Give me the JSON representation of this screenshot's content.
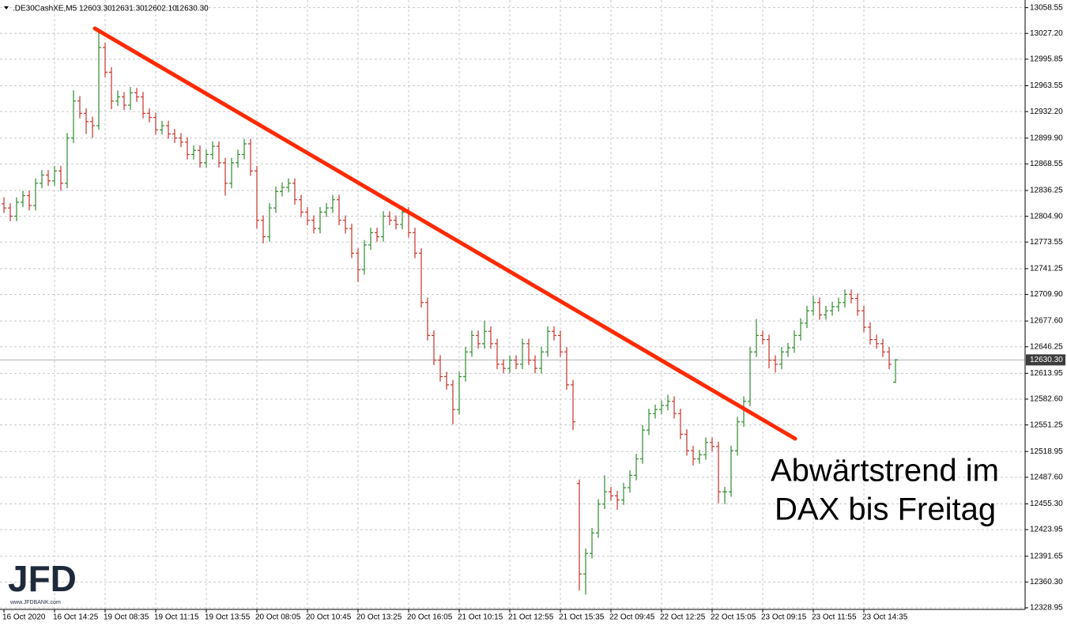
{
  "chart_data": {
    "type": "ohlc",
    "symbol": ".DE30CashXE,M5",
    "header_ohlc": [
      "12603.30",
      "12631.30",
      "12602.10",
      "12630.30"
    ],
    "annotation": [
      "Abwärtstrend im",
      "DAX bis Freitag"
    ],
    "watermark": {
      "logo": "JFD",
      "url": "www.JFDBANK.com"
    },
    "up_color": "#2e8b2e",
    "down_color": "#c8322a",
    "grid": true,
    "current_price": {
      "value": 12630.3,
      "label": "12630.30"
    },
    "ylim": [
      12327,
      13063
    ],
    "yticks": [
      13058.55,
      {
        "value": 13027.2,
        "label": "13027.20"
      },
      12995.85,
      12963.55,
      {
        "value": 12932.2,
        "label": "12932.20"
      },
      {
        "value": 12899.9,
        "label": "12899.90"
      },
      12868.55,
      12836.25,
      {
        "value": 12804.9,
        "label": "12804.90"
      },
      12773.55,
      12741.25,
      {
        "value": 12709.9,
        "label": "12709.90"
      },
      {
        "value": 12677.6,
        "label": "12677.60"
      },
      12646.25,
      12613.95,
      {
        "value": 12582.6,
        "label": "12582.60"
      },
      12551.25,
      12518.95,
      {
        "value": 12487.6,
        "label": "12487.60"
      },
      {
        "value": 12455.3,
        "label": "12455.30"
      },
      12423.95,
      12391.65,
      {
        "value": 12360.3,
        "label": "12360.30"
      },
      12328.95
    ],
    "categories": [
      "16 Oct 2020",
      null,
      null,
      null,
      null,
      null,
      null,
      null,
      "16 Oct 14:25",
      null,
      null,
      null,
      null,
      null,
      null,
      null,
      "19 Oct 08:35",
      null,
      null,
      null,
      null,
      null,
      null,
      null,
      "19 Oct 11:15",
      null,
      null,
      null,
      null,
      null,
      null,
      null,
      "19 Oct 13:55",
      null,
      null,
      null,
      null,
      null,
      null,
      null,
      "20 Oct 08:05",
      null,
      null,
      null,
      null,
      null,
      null,
      null,
      "20 Oct 10:45",
      null,
      null,
      null,
      null,
      null,
      null,
      null,
      "20 Oct 13:25",
      null,
      null,
      null,
      null,
      null,
      null,
      null,
      "20 Oct 16:05",
      null,
      null,
      null,
      null,
      null,
      null,
      null,
      "21 Oct 10:15",
      null,
      null,
      null,
      null,
      null,
      null,
      null,
      "21 Oct 12:55",
      null,
      null,
      null,
      null,
      null,
      null,
      null,
      "21 Oct 15:35",
      null,
      null,
      null,
      null,
      null,
      null,
      null,
      "22 Oct 09:45",
      null,
      null,
      null,
      null,
      null,
      null,
      null,
      "22 Oct 12:25",
      null,
      null,
      null,
      null,
      null,
      null,
      null,
      "22 Oct 15:05",
      null,
      null,
      null,
      null,
      null,
      null,
      null,
      "23 Oct 09:15",
      null,
      null,
      null,
      null,
      null,
      null,
      null,
      "23 Oct 11:55",
      null,
      null,
      null,
      null,
      null,
      null,
      null,
      "23 Oct 14:35",
      null,
      null,
      null,
      null,
      null
    ],
    "ohlc": [
      [
        12820,
        12828,
        12809,
        12815
      ],
      [
        12815,
        12821,
        12799,
        12805
      ],
      [
        12805,
        12828,
        12799,
        12822
      ],
      [
        12822,
        12836,
        12816,
        12830
      ],
      [
        12830,
        12836,
        12812,
        12818
      ],
      [
        12818,
        12851,
        12812,
        12845
      ],
      [
        12845,
        12861,
        12839,
        12855
      ],
      [
        12855,
        12861,
        12842,
        12848
      ],
      [
        12848,
        12866,
        12842,
        12860
      ],
      [
        12860,
        12866,
        12836,
        12845
      ],
      [
        12845,
        12906,
        12839,
        12900
      ],
      [
        12900,
        12958,
        12894,
        12945
      ],
      [
        12945,
        12951,
        12924,
        12930
      ],
      [
        12930,
        12936,
        12905,
        12920
      ],
      [
        12920,
        12926,
        12900,
        12915
      ],
      [
        12915,
        13032,
        12910,
        13010
      ],
      [
        13010,
        13016,
        12974,
        12980
      ],
      [
        12980,
        12986,
        12935,
        12945
      ],
      [
        12945,
        12958,
        12939,
        12950
      ],
      [
        12950,
        12956,
        12934,
        12940
      ],
      [
        12940,
        12962,
        12934,
        12955
      ],
      [
        12955,
        12961,
        12944,
        12950
      ],
      [
        12950,
        12956,
        12924,
        12930
      ],
      [
        12930,
        12936,
        12919,
        12925
      ],
      [
        12925,
        12931,
        12904,
        12910
      ],
      [
        12910,
        12921,
        12904,
        12915
      ],
      [
        12915,
        12921,
        12899,
        12905
      ],
      [
        12905,
        12911,
        12894,
        12900
      ],
      [
        12900,
        12906,
        12889,
        12895
      ],
      [
        12895,
        12901,
        12874,
        12880
      ],
      [
        12880,
        12891,
        12874,
        12885
      ],
      [
        12885,
        12891,
        12864,
        12870
      ],
      [
        12870,
        12886,
        12864,
        12880
      ],
      [
        12880,
        12896,
        12874,
        12890
      ],
      [
        12890,
        12896,
        12864,
        12870
      ],
      [
        12870,
        12876,
        12830,
        12845
      ],
      [
        12845,
        12876,
        12839,
        12870
      ],
      [
        12870,
        12886,
        12864,
        12880
      ],
      [
        12880,
        12899,
        12874,
        12893
      ],
      [
        12893,
        12899,
        12854,
        12860
      ],
      [
        12860,
        12866,
        12790,
        12800
      ],
      [
        12800,
        12806,
        12772,
        12780
      ],
      [
        12780,
        12821,
        12774,
        12815
      ],
      [
        12815,
        12841,
        12809,
        12835
      ],
      [
        12835,
        12846,
        12829,
        12840
      ],
      [
        12840,
        12851,
        12834,
        12845
      ],
      [
        12845,
        12851,
        12819,
        12825
      ],
      [
        12825,
        12831,
        12804,
        12810
      ],
      [
        12810,
        12816,
        12794,
        12800
      ],
      [
        12800,
        12806,
        12784,
        12790
      ],
      [
        12790,
        12816,
        12784,
        12810
      ],
      [
        12810,
        12821,
        12804,
        12815
      ],
      [
        12815,
        12831,
        12809,
        12825
      ],
      [
        12825,
        12831,
        12794,
        12800
      ],
      [
        12800,
        12806,
        12784,
        12790
      ],
      [
        12790,
        12796,
        12754,
        12760
      ],
      [
        12760,
        12766,
        12725,
        12740
      ],
      [
        12740,
        12776,
        12734,
        12770
      ],
      [
        12770,
        12791,
        12764,
        12785
      ],
      [
        12785,
        12791,
        12774,
        12780
      ],
      [
        12780,
        12811,
        12774,
        12805
      ],
      [
        12805,
        12811,
        12794,
        12800
      ],
      [
        12800,
        12806,
        12789,
        12795
      ],
      [
        12795,
        12816,
        12789,
        12810
      ],
      [
        12810,
        12816,
        12779,
        12785
      ],
      [
        12785,
        12791,
        12754,
        12760
      ],
      [
        12760,
        12766,
        12694,
        12700
      ],
      [
        12700,
        12706,
        12654,
        12660
      ],
      [
        12660,
        12666,
        12624,
        12630
      ],
      [
        12630,
        12636,
        12604,
        12610
      ],
      [
        12610,
        12616,
        12594,
        12600
      ],
      [
        12600,
        12606,
        12552,
        12570
      ],
      [
        12570,
        12616,
        12564,
        12610
      ],
      [
        12610,
        12646,
        12604,
        12640
      ],
      [
        12640,
        12666,
        12634,
        12660
      ],
      [
        12660,
        12666,
        12644,
        12650
      ],
      [
        12650,
        12678,
        12644,
        12665
      ],
      [
        12665,
        12671,
        12644,
        12650
      ],
      [
        12650,
        12656,
        12619,
        12625
      ],
      [
        12625,
        12631,
        12614,
        12620
      ],
      [
        12620,
        12636,
        12614,
        12630
      ],
      [
        12630,
        12636,
        12619,
        12625
      ],
      [
        12625,
        12656,
        12619,
        12650
      ],
      [
        12650,
        12656,
        12624,
        12630
      ],
      [
        12630,
        12636,
        12614,
        12620
      ],
      [
        12620,
        12646,
        12614,
        12640
      ],
      [
        12640,
        12671,
        12634,
        12665
      ],
      [
        12665,
        12671,
        12654,
        12660
      ],
      [
        12660,
        12666,
        12634,
        12640
      ],
      [
        12640,
        12646,
        12594,
        12600
      ],
      [
        12600,
        12606,
        12545,
        12555
      ],
      [
        12480,
        12485,
        12350,
        12370
      ],
      [
        12370,
        12401,
        12345,
        12395
      ],
      [
        12395,
        12426,
        12389,
        12420
      ],
      [
        12420,
        12461,
        12414,
        12455
      ],
      [
        12455,
        12490,
        12449,
        12470
      ],
      [
        12470,
        12476,
        12459,
        12465
      ],
      [
        12465,
        12471,
        12448,
        12460
      ],
      [
        12460,
        12481,
        12454,
        12475
      ],
      [
        12475,
        12496,
        12469,
        12490
      ],
      [
        12490,
        12516,
        12484,
        12510
      ],
      [
        12510,
        12551,
        12504,
        12545
      ],
      [
        12545,
        12571,
        12539,
        12565
      ],
      [
        12565,
        12576,
        12559,
        12570
      ],
      [
        12570,
        12581,
        12564,
        12575
      ],
      [
        12575,
        12588,
        12569,
        12580
      ],
      [
        12580,
        12586,
        12559,
        12565
      ],
      [
        12565,
        12571,
        12534,
        12540
      ],
      [
        12540,
        12546,
        12514,
        12520
      ],
      [
        12520,
        12526,
        12502,
        12510
      ],
      [
        12510,
        12521,
        12504,
        12515
      ],
      [
        12515,
        12536,
        12509,
        12530
      ],
      [
        12530,
        12536,
        12519,
        12525
      ],
      [
        12525,
        12531,
        12456,
        12470
      ],
      [
        12470,
        12476,
        12455,
        12470
      ],
      [
        12470,
        12526,
        12464,
        12520
      ],
      [
        12520,
        12561,
        12514,
        12555
      ],
      [
        12555,
        12586,
        12549,
        12580
      ],
      [
        12580,
        12646,
        12574,
        12640
      ],
      [
        12640,
        12680,
        12634,
        12660
      ],
      [
        12660,
        12666,
        12649,
        12655
      ],
      [
        12655,
        12661,
        12620,
        12630
      ],
      [
        12630,
        12636,
        12615,
        12625
      ],
      [
        12625,
        12646,
        12619,
        12640
      ],
      [
        12640,
        12651,
        12634,
        12645
      ],
      [
        12645,
        12666,
        12639,
        12660
      ],
      [
        12660,
        12681,
        12654,
        12675
      ],
      [
        12675,
        12696,
        12669,
        12690
      ],
      [
        12690,
        12708,
        12684,
        12700
      ],
      [
        12700,
        12706,
        12679,
        12685
      ],
      [
        12685,
        12696,
        12679,
        12690
      ],
      [
        12690,
        12701,
        12684,
        12695
      ],
      [
        12695,
        12706,
        12689,
        12700
      ],
      [
        12700,
        12716,
        12694,
        12710
      ],
      [
        12710,
        12716,
        12699,
        12705
      ],
      [
        12705,
        12711,
        12684,
        12690
      ],
      [
        12690,
        12696,
        12664,
        12670
      ],
      [
        12670,
        12676,
        12649,
        12655
      ],
      [
        12655,
        12661,
        12644,
        12650
      ],
      [
        12650,
        12656,
        12634,
        12640
      ],
      [
        12640,
        12646,
        12619,
        12625
      ],
      [
        12603.3,
        12631.3,
        12602.1,
        12630.3
      ]
    ]
  }
}
